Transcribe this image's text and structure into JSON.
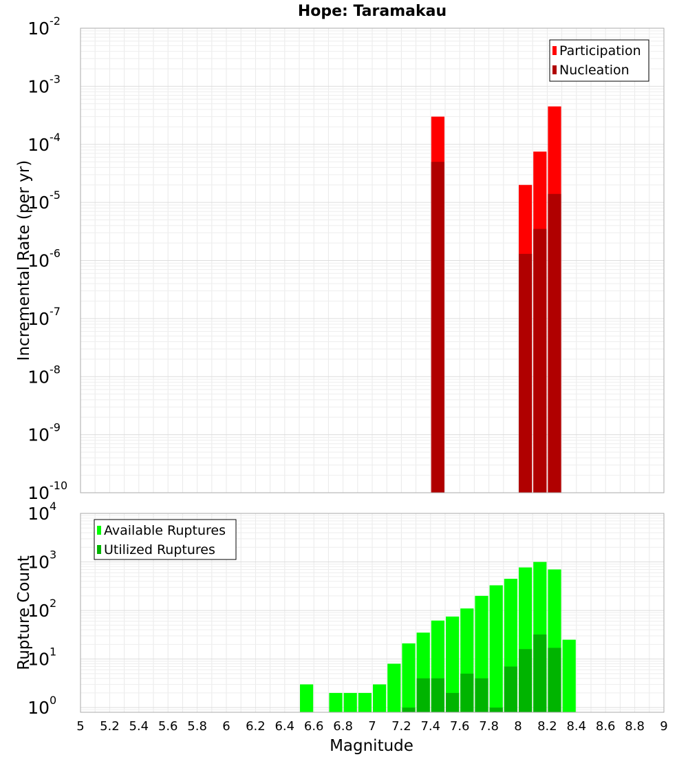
{
  "chart_data": [
    {
      "type": "bar",
      "title": "Hope: Taramakau",
      "xlabel": "Magnitude",
      "ylabel": "Incremental Rate (per yr)",
      "yscale": "log",
      "ylim": [
        1e-10,
        0.01
      ],
      "xlim": [
        5,
        9
      ],
      "grid": true,
      "legend_position": "top-right",
      "ytick_labels": [
        {
          "base": "10",
          "exp": "-10",
          "value": 1e-10
        },
        {
          "base": "10",
          "exp": "-9",
          "value": 1e-09
        },
        {
          "base": "10",
          "exp": "-8",
          "value": 1e-08
        },
        {
          "base": "10",
          "exp": "-7",
          "value": 1e-07
        },
        {
          "base": "10",
          "exp": "-6",
          "value": 1e-06
        },
        {
          "base": "10",
          "exp": "-5",
          "value": 1e-05
        },
        {
          "base": "10",
          "exp": "-4",
          "value": 0.0001
        },
        {
          "base": "10",
          "exp": "-3",
          "value": 0.001
        },
        {
          "base": "10",
          "exp": "-2",
          "value": 0.01
        }
      ],
      "series": [
        {
          "name": "Participation",
          "color": "#ff0000",
          "x": [
            7.45,
            8.05,
            8.15,
            8.25
          ],
          "values": [
            0.0003,
            2e-05,
            7.5e-05,
            0.00045
          ]
        },
        {
          "name": "Nucleation",
          "color": "#b00000",
          "x": [
            7.45,
            8.05,
            8.15,
            8.25
          ],
          "values": [
            5e-05,
            1.3e-06,
            3.5e-06,
            1.4e-05
          ]
        }
      ]
    },
    {
      "type": "bar",
      "title": "",
      "xlabel": "Magnitude",
      "ylabel": "Rupture Count",
      "yscale": "log",
      "ylim": [
        0.8,
        10000
      ],
      "xlim": [
        5,
        9
      ],
      "grid": true,
      "legend_position": "top-left",
      "xtick_labels": [
        "5",
        "5.2",
        "5.4",
        "5.6",
        "5.8",
        "6",
        "6.2",
        "6.4",
        "6.6",
        "6.8",
        "7",
        "7.2",
        "7.4",
        "7.6",
        "7.8",
        "8",
        "8.2",
        "8.4",
        "8.6",
        "8.8",
        "9"
      ],
      "ytick_labels": [
        {
          "base": "10",
          "exp": "0",
          "value": 1
        },
        {
          "base": "10",
          "exp": "1",
          "value": 10
        },
        {
          "base": "10",
          "exp": "2",
          "value": 100
        },
        {
          "base": "10",
          "exp": "3",
          "value": 1000
        },
        {
          "base": "10",
          "exp": "4",
          "value": 10000
        }
      ],
      "series": [
        {
          "name": "Available Ruptures",
          "color": "#00ff00",
          "x": [
            6.55,
            6.75,
            6.85,
            6.95,
            7.05,
            7.15,
            7.25,
            7.35,
            7.45,
            7.55,
            7.65,
            7.75,
            7.85,
            7.95,
            8.05,
            8.15,
            8.25,
            8.35
          ],
          "values": [
            3,
            2,
            2,
            2,
            3,
            8,
            21,
            35,
            62,
            75,
            110,
            200,
            330,
            450,
            770,
            1000,
            700,
            25
          ]
        },
        {
          "name": "Utilized Ruptures",
          "color": "#00b400",
          "x": [
            7.25,
            7.35,
            7.45,
            7.55,
            7.65,
            7.75,
            7.85,
            7.95,
            8.05,
            8.15,
            8.25
          ],
          "values": [
            1,
            4,
            4,
            2,
            5,
            4,
            1,
            7,
            16,
            32,
            17
          ]
        }
      ]
    }
  ]
}
